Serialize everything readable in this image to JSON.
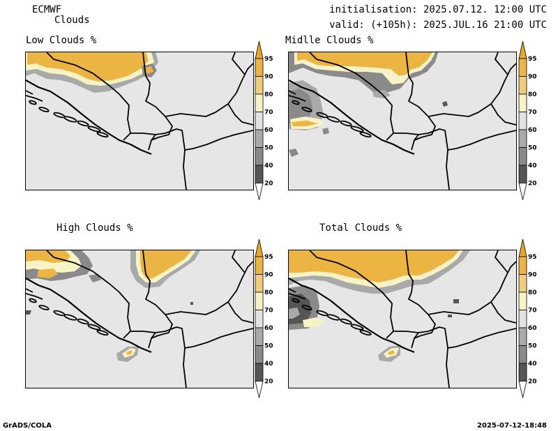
{
  "header": {
    "model": "ECMWF",
    "product": "Clouds",
    "init": "initialisation: 2025.07.12. 12:00 UTC",
    "valid": "valid: (+105h): 2025.JUL.16 21:00 UTC"
  },
  "panels": [
    {
      "title": "Low Clouds %"
    },
    {
      "title": "Midlle Clouds %"
    },
    {
      "title": "High Clouds %"
    },
    {
      "title": "Total Clouds %"
    }
  ],
  "colorbar": {
    "labels": [
      "95",
      "90",
      "80",
      "70",
      "60",
      "50",
      "40",
      "20"
    ],
    "colors": {
      "above95": "#e8a727",
      "c90_95": "#ecb443",
      "c80_90": "#efcc7e",
      "c70_80": "#f7f3c6",
      "c60_70": "#e2e2e2",
      "c50_60": "#a9a9a9",
      "c40_50": "#8a8a8a",
      "c20_40": "#555555",
      "below20": "#ffffff"
    }
  },
  "footer": {
    "left": "GrADS/COLA",
    "right": "2025-07-12-18:48"
  }
}
